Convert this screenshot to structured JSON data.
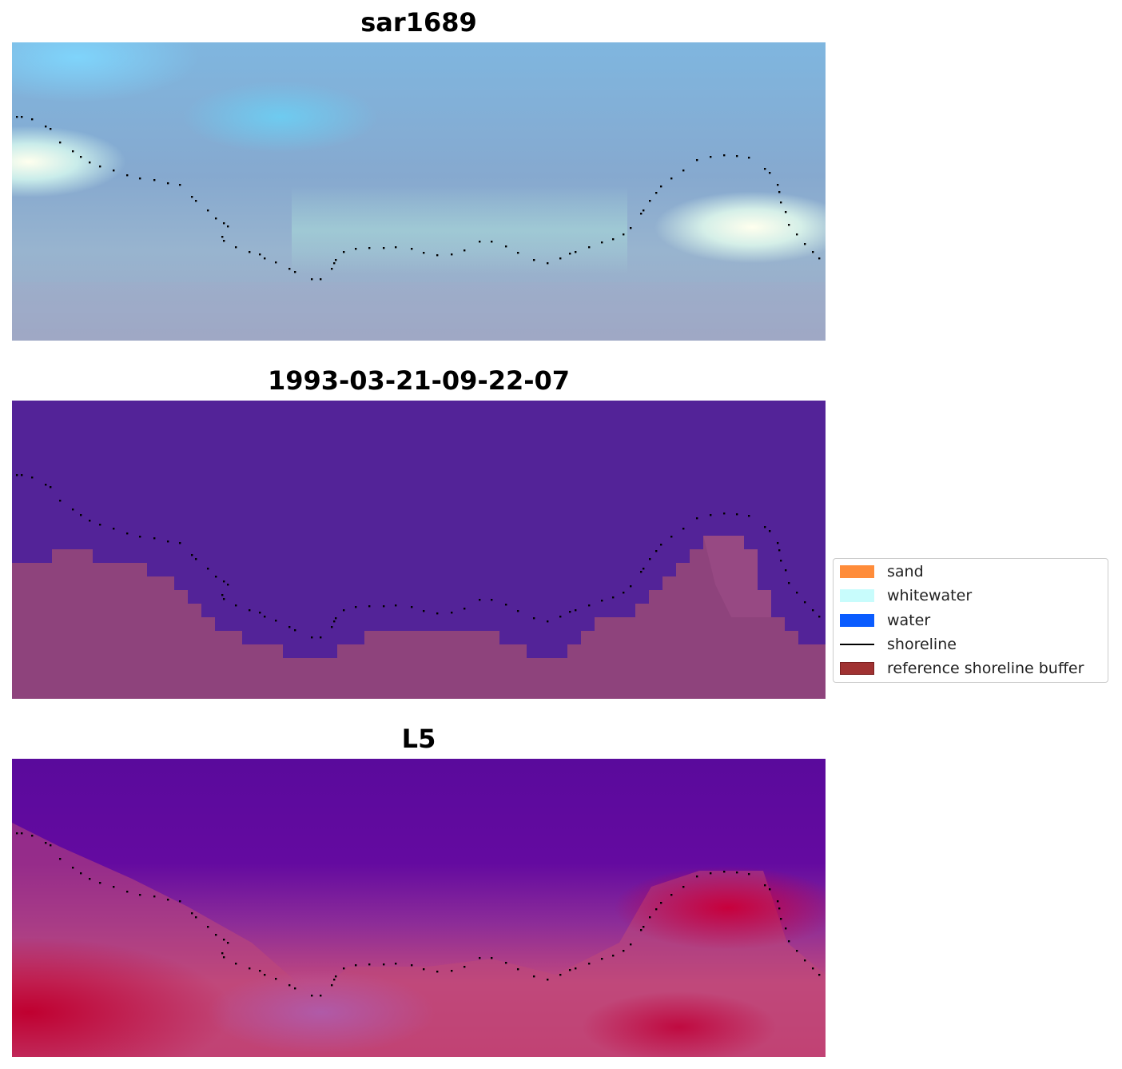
{
  "panels": [
    {
      "title": "sar1689",
      "kind": "rgb-image"
    },
    {
      "title": "1993-03-21-09-22-07",
      "kind": "classification"
    },
    {
      "title": "L5",
      "kind": "probability"
    }
  ],
  "legend": {
    "items": [
      {
        "label": "sand",
        "color": "#ff8c3a",
        "kind": "patch"
      },
      {
        "label": "whitewater",
        "color": "#c8fcfc",
        "kind": "patch"
      },
      {
        "label": "water",
        "color": "#0a5cff",
        "kind": "patch"
      },
      {
        "label": "shoreline",
        "color": "#000000",
        "kind": "line"
      },
      {
        "label": "reference shoreline buffer",
        "color": "#a03232",
        "kind": "patch"
      }
    ]
  },
  "colors": {
    "water_class": "#532398",
    "buffer_overlay": "#8e437c",
    "shoreline": "#000000"
  }
}
